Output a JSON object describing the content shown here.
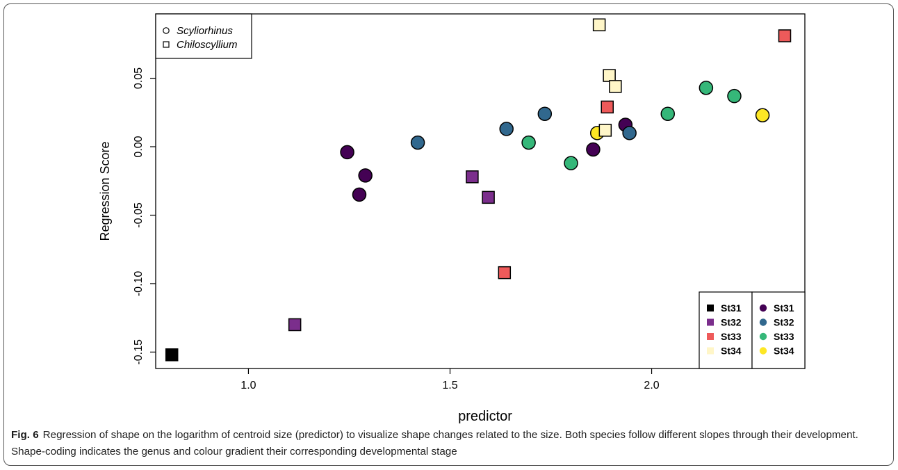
{
  "figure": {
    "label": "Fig. 6",
    "caption": "Regression of shape on the logarithm of centroid size (predictor) to visualize shape changes related to the size. Both species follow different slopes through their development. Shape-coding indicates the genus and colour gradient their corresponding developmental stage"
  },
  "colors": {
    "St31": "#440154",
    "St32": "#31688E",
    "St33": "#35B779",
    "St34": "#FDE725",
    "Chiloscyllium_St31": "#000000",
    "Chiloscyllium_St32": "#7B2E8C",
    "Chiloscyllium_St33": "#EE5A5A",
    "Chiloscyllium_St34": "#FFF6C8"
  },
  "chart_data": {
    "type": "scatter",
    "xlabel": "predictor",
    "ylabel": "Regression Score",
    "xlim": [
      0.77,
      2.38
    ],
    "ylim": [
      -0.162,
      0.097
    ],
    "xticks": [
      1.0,
      1.5,
      2.0
    ],
    "xtick_labels": [
      "1.0",
      "1.5",
      "2.0"
    ],
    "yticks": [
      -0.15,
      -0.1,
      -0.05,
      0.0,
      0.05
    ],
    "ytick_labels": [
      "-0.15",
      "-0.10",
      "-0.05",
      "0.00",
      "0.05"
    ],
    "grid": false,
    "genus_legend": {
      "position": "top-left",
      "entries": [
        {
          "shape": "circle",
          "label": "Scyliorhinus"
        },
        {
          "shape": "square",
          "label": "Chiloscyllium"
        }
      ]
    },
    "stage_legend": {
      "position": "bottom-right",
      "columns": [
        {
          "shape": "square",
          "entries": [
            "St31",
            "St32",
            "St33",
            "St34"
          ]
        },
        {
          "shape": "circle",
          "entries": [
            "St31",
            "St32",
            "St33",
            "St34"
          ]
        }
      ]
    },
    "series": [
      {
        "genus": "Scyliorhinus",
        "stage": "St31",
        "shape": "circle",
        "points": [
          [
            1.245,
            -0.004
          ],
          [
            1.29,
            -0.021
          ],
          [
            1.275,
            -0.035
          ],
          [
            1.855,
            -0.002
          ],
          [
            1.935,
            0.016
          ]
        ]
      },
      {
        "genus": "Scyliorhinus",
        "stage": "St32",
        "shape": "circle",
        "points": [
          [
            1.42,
            0.003
          ],
          [
            1.64,
            0.013
          ],
          [
            1.735,
            0.024
          ],
          [
            1.945,
            0.01
          ]
        ]
      },
      {
        "genus": "Scyliorhinus",
        "stage": "St33",
        "shape": "circle",
        "points": [
          [
            1.695,
            0.003
          ],
          [
            1.8,
            -0.012
          ],
          [
            2.04,
            0.024
          ],
          [
            2.135,
            0.043
          ],
          [
            2.205,
            0.037
          ]
        ]
      },
      {
        "genus": "Scyliorhinus",
        "stage": "St34",
        "shape": "circle",
        "points": [
          [
            1.865,
            0.01
          ],
          [
            2.275,
            0.023
          ]
        ]
      },
      {
        "genus": "Chiloscyllium",
        "stage": "St31",
        "shape": "square",
        "points": [
          [
            0.81,
            -0.152
          ]
        ]
      },
      {
        "genus": "Chiloscyllium",
        "stage": "St32",
        "shape": "square",
        "points": [
          [
            1.115,
            -0.13
          ],
          [
            1.555,
            -0.022
          ],
          [
            1.595,
            -0.037
          ]
        ]
      },
      {
        "genus": "Chiloscyllium",
        "stage": "St33",
        "shape": "square",
        "points": [
          [
            1.635,
            -0.092
          ],
          [
            1.89,
            0.029
          ],
          [
            2.33,
            0.081
          ]
        ]
      },
      {
        "genus": "Chiloscyllium",
        "stage": "St34",
        "shape": "square",
        "points": [
          [
            1.87,
            0.089
          ],
          [
            1.895,
            0.052
          ],
          [
            1.91,
            0.044
          ],
          [
            1.885,
            0.012
          ]
        ]
      }
    ]
  }
}
